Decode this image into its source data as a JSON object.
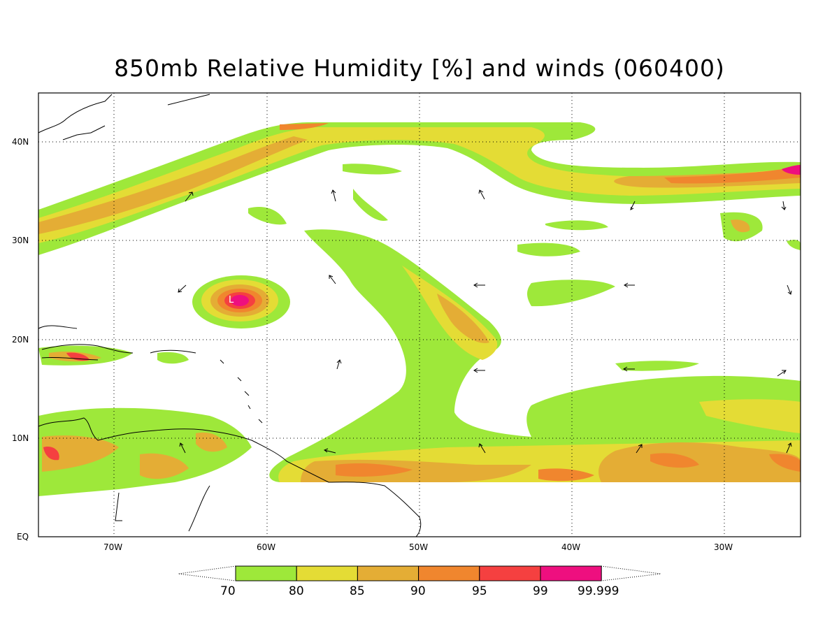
{
  "title": "850mb Relative Humidity [%] and winds (060400)",
  "map": {
    "lat_ticks": [
      "40N",
      "30N",
      "20N",
      "10N",
      "EQ"
    ],
    "lon_ticks": [
      "70W",
      "60W",
      "50W",
      "40W",
      "30W"
    ],
    "grid": "dotted",
    "storm_marker": "L"
  },
  "colorbar": {
    "levels": [
      "70",
      "80",
      "85",
      "90",
      "95",
      "99",
      "99.999"
    ],
    "colors": [
      "#9ee83a",
      "#e4dc35",
      "#e4ad35",
      "#f0862e",
      "#f54040",
      "#ee0f7f"
    ]
  },
  "colors": {
    "rh_70": "#9ee83a",
    "rh_80": "#e4dc35",
    "rh_85": "#e4ad35",
    "rh_90": "#f0862e",
    "rh_95": "#f54040",
    "rh_99": "#ee0f7f"
  }
}
